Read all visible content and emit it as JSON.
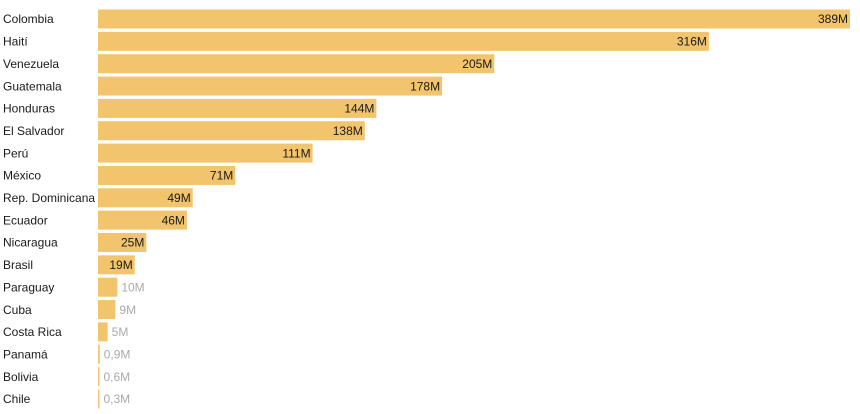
{
  "chart_data": {
    "type": "bar",
    "orientation": "horizontal",
    "unit_suffix": "M",
    "bar_color": "#F2C46D",
    "label_dark_color": "#1a1a1a",
    "label_light_color": "#aaaaaa",
    "category_label_color": "#1a1a1a",
    "xlim": [
      0,
      389
    ],
    "grid": false,
    "legend": "none",
    "categories": [
      "Colombia",
      "Haití",
      "Venezuela",
      "Guatemala",
      "Honduras",
      "El Salvador",
      "Perú",
      "México",
      "Rep. Dominicana",
      "Ecuador",
      "Nicaragua",
      "Brasil",
      "Paraguay",
      "Cuba",
      "Costa Rica",
      "Panamá",
      "Bolivia",
      "Chile"
    ],
    "values": [
      389,
      316,
      205,
      178,
      144,
      138,
      111,
      71,
      49,
      46,
      25,
      19,
      10,
      9,
      5,
      0.9,
      0.6,
      0.3
    ],
    "value_labels": [
      "389M",
      "316M",
      "205M",
      "178M",
      "144M",
      "138M",
      "111M",
      "71M",
      "49M",
      "46M",
      "25M",
      "19M",
      "10M",
      "9M",
      "5M",
      "0,9M",
      "0,6M",
      "0,3M"
    ]
  }
}
